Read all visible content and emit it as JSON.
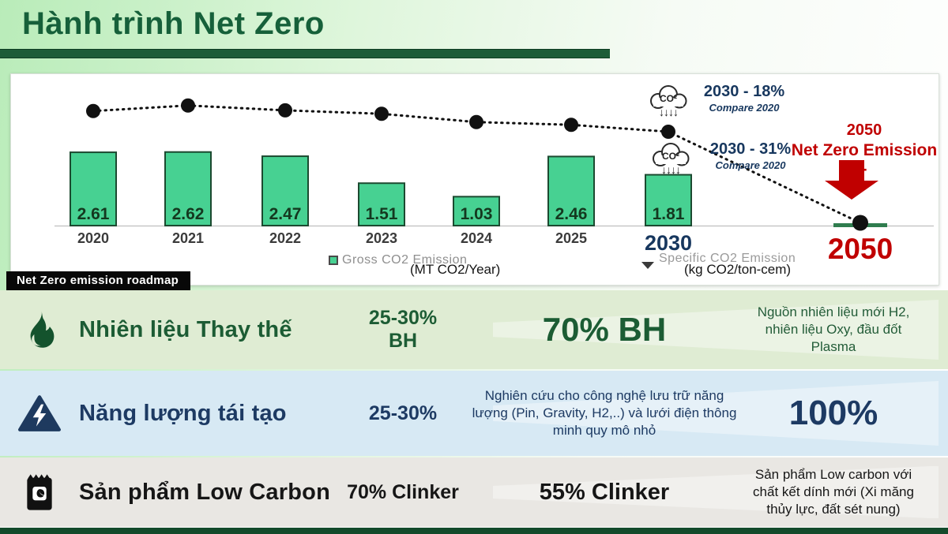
{
  "header": {
    "title": "Hành trình Net Zero"
  },
  "chart": {
    "roadmap_label": "Net Zero emission roadmap",
    "annotations": {
      "a1": {
        "title": "2030 - 18%",
        "subtitle": "Compare 2020"
      },
      "a2": {
        "title": "2030 - 31%",
        "subtitle": "Compare 2020"
      },
      "netzero": {
        "line1": "2050",
        "line2": "Net Zero Emission -"
      }
    },
    "legend": [
      {
        "label": "Gross CO2 Emission",
        "unit": "(MT CO2/Year)"
      },
      {
        "label": "Specific CO2 Emission",
        "unit": "(kg CO2/ton-cem)"
      }
    ]
  },
  "chart_data": {
    "type": "bar",
    "subtype": "combo-bar-line",
    "categories": [
      "2020",
      "2021",
      "2022",
      "2023",
      "2024",
      "2025",
      "2030",
      "2050"
    ],
    "series": [
      {
        "name": "Gross CO2 Emission",
        "type": "bar",
        "unit": "(MT CO2/Year)",
        "values": [
          2.61,
          2.62,
          2.47,
          1.51,
          1.03,
          2.46,
          1.81,
          0
        ]
      },
      {
        "name": "Specific CO2 Emission",
        "type": "line",
        "unit": "(kg CO2/ton-cem)",
        "values_relative": [
          0.83,
          0.87,
          0.835,
          0.81,
          0.75,
          0.73,
          0.68,
          0.02
        ]
      }
    ],
    "title": "",
    "xlabel": "",
    "ylabel": "",
    "ylim": [
      0,
      3
    ],
    "grid": false,
    "legend_position": "bottom",
    "notes": "Specific CO2 Emission line has no labeled axis; values are relative estimates. 2050 bar is ~0 (net zero)."
  },
  "roadmap": {
    "rows": [
      {
        "icon": "flame-icon",
        "title": "Nhiên liệu Thay thế",
        "col2a": "25-30%",
        "col2b": "BH",
        "col3": "70% BH",
        "col4": "Nguồn nhiên liệu mới H2, nhiên liệu Oxy, đầu đốt Plasma"
      },
      {
        "icon": "lightning-icon",
        "title": "Năng lượng tái tạo",
        "col2a": "25-30%",
        "col3": "Nghiên cứu cho công nghệ lưu trữ năng lượng (Pin, Gravity, H2,..) và lưới điện thông minh quy mô nhỏ",
        "col4": "100%"
      },
      {
        "icon": "cement-bag-icon",
        "title": "Sản phẩm Low Carbon",
        "col2a": "70% Clinker",
        "col3": "55% Clinker",
        "col4": "Sản phẩm Low carbon với chất kết dính mới (Xi măng thủy lực, đất sét nung)"
      }
    ]
  },
  "colors": {
    "title_green": "#16603a",
    "bar_fill": "#47d192",
    "bar_border": "#1c4a30",
    "navy": "#17375e",
    "red": "#c00000",
    "row1_bg": "#dfecd3",
    "row2_bg": "#d7e9f4",
    "row3_bg": "#e9e7e3",
    "underline_green": "#1d5c38"
  }
}
